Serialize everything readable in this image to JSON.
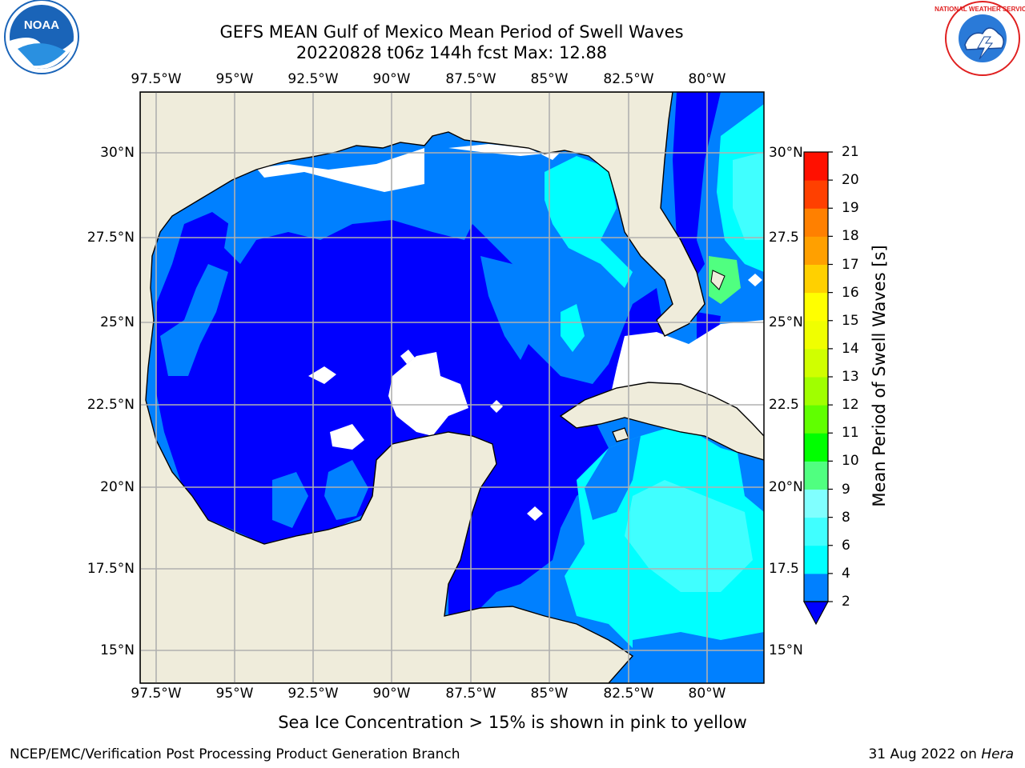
{
  "title": {
    "line1": "GEFS MEAN Gulf of Mexico Mean Period of Swell Waves",
    "line2": "20220828 t06z 144h fcst   Max: 12.88"
  },
  "axes": {
    "lon_labels": [
      "97.5°W",
      "95°W",
      "92.5°W",
      "90°W",
      "87.5°W",
      "85°W",
      "82.5°W",
      "80°W"
    ],
    "lat_labels_left": [
      "30°N",
      "27.5°N",
      "25°N",
      "22.5°N",
      "20°N",
      "17.5°N",
      "15°N"
    ],
    "lat_labels_right": [
      "30°N",
      "27.5",
      "25°N",
      "22.5",
      "20°N",
      "17.5",
      "15°N"
    ]
  },
  "colorbar": {
    "label": "Mean Period of Swell Waves [s]",
    "ticks": [
      "2",
      "4",
      "6",
      "8",
      "9",
      "10",
      "11",
      "12",
      "13",
      "14",
      "15",
      "16",
      "17",
      "18",
      "19",
      "20",
      "21"
    ],
    "colors": [
      "#0000ff",
      "#0080ff",
      "#00ffff",
      "#40ffff",
      "#80ffff",
      "#50ff80",
      "#00ff00",
      "#60ff00",
      "#a0ff00",
      "#d0ff00",
      "#f0ff00",
      "#ffff00",
      "#ffd000",
      "#ffa000",
      "#ff8000",
      "#ff4000",
      "#ff1000",
      "#ff0000"
    ]
  },
  "note": "Sea Ice Concentration > 15% is shown in pink to yellow",
  "footer": {
    "left": "NCEP/EMC/Verification Post Processing Product Generation Branch",
    "right_prefix": "31 Aug 2022 on ",
    "right_host": "Hera"
  },
  "colors": {
    "land": "#efecdb",
    "grid": "#b0b0b0",
    "noaa_blue": "#1a64b8",
    "nws_red": "#e02020"
  },
  "logos": {
    "noaa": "NOAA",
    "nws": "NATIONAL WEATHER SERVICE"
  }
}
